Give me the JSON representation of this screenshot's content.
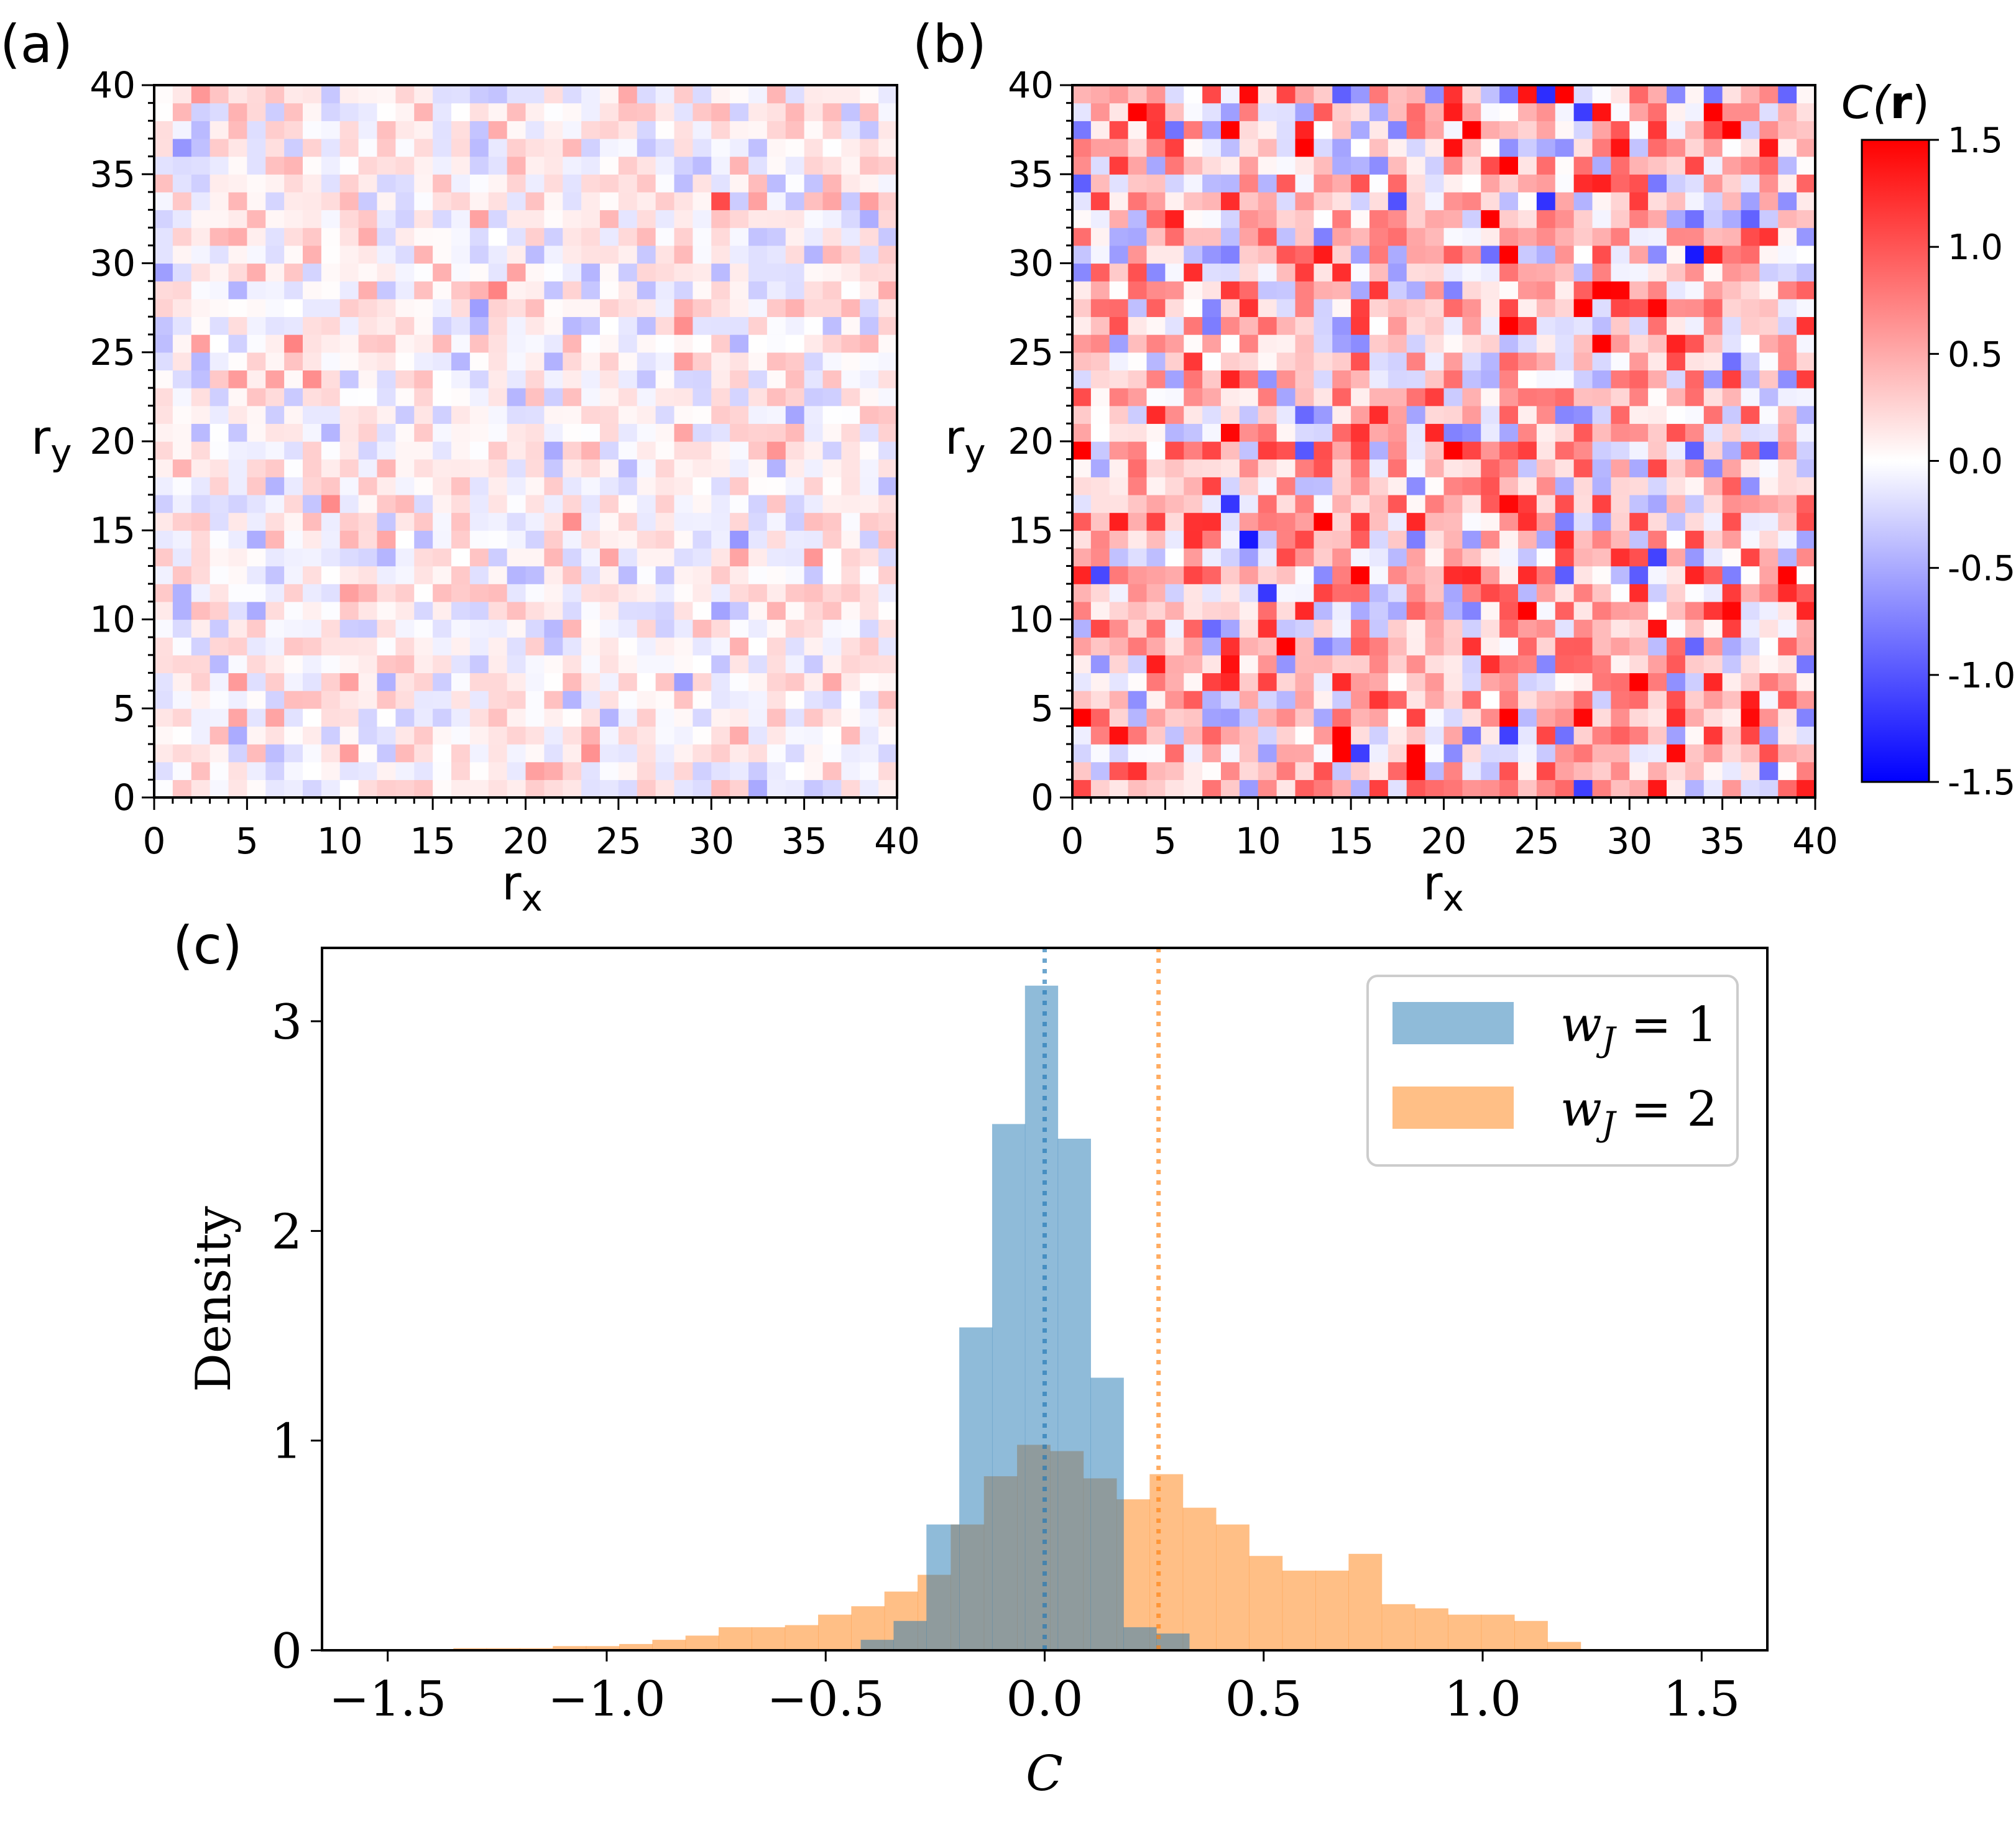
{
  "chart_data": [
    {
      "panel": "(a)",
      "type": "heatmap",
      "title": "",
      "xlabel": "r",
      "xlabel_sub": "x",
      "ylabel": "r",
      "ylabel_sub": "y",
      "grid_size": 40,
      "xlim": [
        0,
        40
      ],
      "ylim": [
        0,
        40
      ],
      "xticks": [
        "0",
        "5",
        "10",
        "15",
        "20",
        "25",
        "30",
        "35",
        "40"
      ],
      "yticks": [
        "0",
        "5",
        "10",
        "15",
        "20",
        "25",
        "30",
        "35",
        "40"
      ],
      "value_mean": 0.05,
      "value_spread": 0.22,
      "seed": 11
    },
    {
      "panel": "(b)",
      "type": "heatmap",
      "title": "",
      "xlabel": "r",
      "xlabel_sub": "x",
      "ylabel": "r",
      "ylabel_sub": "y",
      "grid_size": 40,
      "xlim": [
        0,
        40
      ],
      "ylim": [
        0,
        40
      ],
      "xticks": [
        "0",
        "5",
        "10",
        "15",
        "20",
        "25",
        "30",
        "35",
        "40"
      ],
      "yticks": [
        "0",
        "5",
        "10",
        "15",
        "20",
        "25",
        "30",
        "35",
        "40"
      ],
      "value_mean": 0.3,
      "value_spread": 0.55,
      "seed": 29,
      "colorbar": {
        "label_prefix": "C(",
        "label_bold": "r",
        "label_suffix": ")",
        "range": [
          -1.5,
          1.5
        ],
        "ticks": [
          "1.5",
          "1.0",
          "0.5",
          "0.0",
          "-0.5",
          "-1.0",
          "-1.5"
        ],
        "colormap": "bwr",
        "low_color": "#0000ff",
        "mid_color": "#ffffff",
        "high_color": "#ff0000"
      }
    },
    {
      "panel": "(c)",
      "type": "histogram",
      "xlabel": "C",
      "ylabel": "Density",
      "xlim": [
        -1.65,
        1.65
      ],
      "ylim": [
        0,
        3.35
      ],
      "xticks": [
        {
          "v": -1.5,
          "label": "−1.5"
        },
        {
          "v": -1.0,
          "label": "−1.0"
        },
        {
          "v": -0.5,
          "label": "−0.5"
        },
        {
          "v": 0.0,
          "label": "0.0"
        },
        {
          "v": 0.5,
          "label": "0.5"
        },
        {
          "v": 1.0,
          "label": "1.0"
        },
        {
          "v": 1.5,
          "label": "1.5"
        }
      ],
      "yticks": [
        {
          "v": 0,
          "label": "0"
        },
        {
          "v": 1,
          "label": "1"
        },
        {
          "v": 2,
          "label": "2"
        },
        {
          "v": 3,
          "label": "3"
        }
      ],
      "series": [
        {
          "name": "w_J = 1",
          "legend_main": "w",
          "legend_sub": "J",
          "legend_eq": " = 1",
          "color": "#1f77b4",
          "opacity": 0.5,
          "bin_edges": [
            -0.42,
            -0.345,
            -0.27,
            -0.195,
            -0.12,
            -0.045,
            0.03,
            0.105,
            0.18,
            0.255,
            0.33
          ],
          "values": [
            0.05,
            0.14,
            0.6,
            1.54,
            2.51,
            3.17,
            2.44,
            1.3,
            0.11,
            0.08
          ],
          "mean_line": 0.0
        },
        {
          "name": "w_J = 2",
          "legend_main": "w",
          "legend_sub": "J",
          "legend_eq": " = 2",
          "color": "#ff7f0e",
          "opacity": 0.5,
          "bin_start": -1.35,
          "bin_width": 0.0757,
          "values": [
            0.01,
            0.01,
            0.01,
            0.02,
            0.02,
            0.03,
            0.05,
            0.07,
            0.11,
            0.11,
            0.12,
            0.17,
            0.21,
            0.28,
            0.36,
            0.6,
            0.83,
            0.98,
            0.95,
            0.82,
            0.72,
            0.84,
            0.68,
            0.6,
            0.45,
            0.38,
            0.38,
            0.46,
            0.22,
            0.2,
            0.17,
            0.17,
            0.14,
            0.04
          ],
          "mean_line": 0.26
        }
      ]
    }
  ]
}
